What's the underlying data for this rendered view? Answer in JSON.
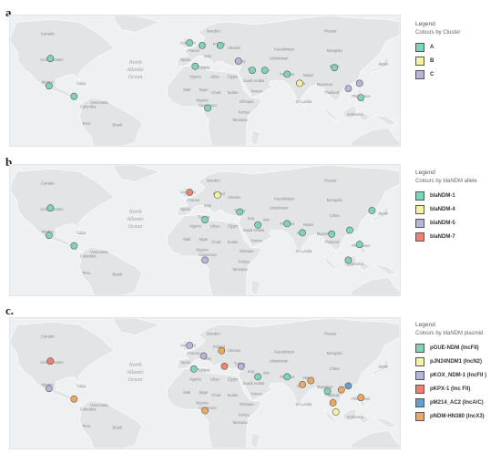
{
  "panels": [
    {
      "label": "a.",
      "legend": {
        "title": "Legend",
        "subtitle": "Colours by Cluster",
        "items": [
          {
            "label": "A",
            "color": "#7fd3b8"
          },
          {
            "label": "B",
            "color": "#f3f3a2"
          },
          {
            "label": "C",
            "color": "#b7b3db"
          }
        ]
      },
      "markers": [
        {
          "lon": -101,
          "lat": 42,
          "c": 0
        },
        {
          "lon": -102,
          "lat": 21,
          "c": 0
        },
        {
          "lon": -84,
          "lat": 13,
          "c": 0
        },
        {
          "lon": -1,
          "lat": 54,
          "c": 0
        },
        {
          "lon": 8,
          "lat": 52,
          "c": 0
        },
        {
          "lon": 21,
          "lat": 52,
          "c": 0
        },
        {
          "lon": 3,
          "lat": 36,
          "c": 0
        },
        {
          "lon": 12,
          "lat": 4,
          "c": 0
        },
        {
          "lon": 34,
          "lat": 40,
          "c": 2
        },
        {
          "lon": 44,
          "lat": 33,
          "c": 0
        },
        {
          "lon": 53,
          "lat": 33,
          "c": 0
        },
        {
          "lon": 69,
          "lat": 30,
          "c": 0
        },
        {
          "lon": 78,
          "lat": 23,
          "c": 1
        },
        {
          "lon": 103,
          "lat": 35,
          "c": 0
        },
        {
          "lon": 121,
          "lat": 23,
          "c": 2
        },
        {
          "lon": 113,
          "lat": 19,
          "c": 2
        },
        {
          "lon": 122,
          "lat": 12,
          "c": 0
        }
      ]
    },
    {
      "label": "b.",
      "legend": {
        "title": "Legend",
        "subtitle": "Colours by blaNDM allele",
        "items": [
          {
            "label": "blaNDM-1",
            "color": "#7fd3b8"
          },
          {
            "label": "blaNDM-4",
            "color": "#f3f3a2"
          },
          {
            "label": "blaNDM-5",
            "color": "#b7b3db"
          },
          {
            "label": "blaNDM-7",
            "color": "#f08070"
          }
        ]
      },
      "markers": [
        {
          "lon": -101,
          "lat": 42,
          "c": 0
        },
        {
          "lon": -102,
          "lat": 21,
          "c": 0
        },
        {
          "lon": -84,
          "lat": 13,
          "c": 0
        },
        {
          "lon": -1,
          "lat": 54,
          "c": 3
        },
        {
          "lon": 19,
          "lat": 52,
          "c": 1
        },
        {
          "lon": 10,
          "lat": 33,
          "c": 0
        },
        {
          "lon": 35,
          "lat": 39,
          "c": 0
        },
        {
          "lon": 48,
          "lat": 29,
          "c": 0
        },
        {
          "lon": 69,
          "lat": 30,
          "c": 0
        },
        {
          "lon": 80,
          "lat": 23,
          "c": 0
        },
        {
          "lon": 101,
          "lat": 22,
          "c": 0
        },
        {
          "lon": 114,
          "lat": 25,
          "c": 0
        },
        {
          "lon": 10,
          "lat": 2,
          "c": 2
        },
        {
          "lon": 121,
          "lat": 14,
          "c": 0
        },
        {
          "lon": 113,
          "lat": 2,
          "c": 0
        },
        {
          "lon": 130,
          "lat": 40,
          "c": 0
        }
      ]
    },
    {
      "label": "c.",
      "legend": {
        "title": "Legend",
        "subtitle": "Colours by blaNDM plasmid",
        "items": [
          {
            "label": "pGUE-NDM (IncFII)",
            "color": "#7fd3b8"
          },
          {
            "label": "pJN24NDM1 (IncN2)",
            "color": "#f3f3a2"
          },
          {
            "label": "pKOX_NDM-1 (IncFII )",
            "color": "#b7b3db"
          },
          {
            "label": "pKPX-1 (Inc FII)",
            "color": "#f08070"
          },
          {
            "label": "pM214_AC2 (IncA/C)",
            "color": "#6a9ec9"
          },
          {
            "label": "pNDM-HN380 (IncX3)",
            "color": "#f0a860"
          }
        ]
      },
      "markers": [
        {
          "lon": -101,
          "lat": 42,
          "c": 3
        },
        {
          "lon": -102,
          "lat": 21,
          "c": 2
        },
        {
          "lon": -84,
          "lat": 13,
          "c": 5
        },
        {
          "lon": -1,
          "lat": 54,
          "c": 2
        },
        {
          "lon": 9,
          "lat": 46,
          "c": 2
        },
        {
          "lon": 22,
          "lat": 50,
          "c": 5
        },
        {
          "lon": 2,
          "lat": 36,
          "c": 0
        },
        {
          "lon": 10,
          "lat": 4,
          "c": 5
        },
        {
          "lon": 24,
          "lat": 38,
          "c": 3
        },
        {
          "lon": 36,
          "lat": 38,
          "c": 2
        },
        {
          "lon": 48,
          "lat": 30,
          "c": 0
        },
        {
          "lon": 69,
          "lat": 30,
          "c": 0
        },
        {
          "lon": 80,
          "lat": 24,
          "c": 5
        },
        {
          "lon": 98,
          "lat": 19,
          "c": 0
        },
        {
          "lon": 108,
          "lat": 20,
          "c": 5
        },
        {
          "lon": 122,
          "lat": 14,
          "c": 5
        },
        {
          "lon": 102,
          "lat": 10,
          "c": 5
        },
        {
          "lon": 104,
          "lat": 3,
          "c": 1
        },
        {
          "lon": 86,
          "lat": 27,
          "c": 5
        },
        {
          "lon": 113,
          "lat": 23,
          "c": 4
        }
      ]
    }
  ],
  "map_labels": {
    "ocean": [
      "North",
      "Atlantic",
      "Ocean"
    ],
    "places": [
      {
        "t": "Canada",
        "lon": -103,
        "lat": 60
      },
      {
        "t": "United States",
        "lon": -100,
        "lat": 40
      },
      {
        "t": "Mexico",
        "lon": -103,
        "lat": 23
      },
      {
        "t": "Cuba",
        "lon": -79,
        "lat": 22
      },
      {
        "t": "Venezuela",
        "lon": -66,
        "lat": 7
      },
      {
        "t": "Colombia",
        "lon": -74,
        "lat": 4
      },
      {
        "t": "Brazil",
        "lon": -53,
        "lat": -10
      },
      {
        "t": "Peru",
        "lon": -75,
        "lat": -9
      },
      {
        "t": "Russia",
        "lon": 100,
        "lat": 62
      },
      {
        "t": "Sweden",
        "lon": 16,
        "lat": 62
      },
      {
        "t": "Poland",
        "lon": 20,
        "lat": 52
      },
      {
        "t": "Ukraine",
        "lon": 31,
        "lat": 49
      },
      {
        "t": "France",
        "lon": 2,
        "lat": 47
      },
      {
        "t": "Spain",
        "lon": -4,
        "lat": 40
      },
      {
        "t": "Italy",
        "lon": 12,
        "lat": 43
      },
      {
        "t": "Turkey",
        "lon": 35,
        "lat": 39
      },
      {
        "t": "Kazakhstan",
        "lon": 67,
        "lat": 48
      },
      {
        "t": "Mongolia",
        "lon": 103,
        "lat": 47
      },
      {
        "t": "China",
        "lon": 103,
        "lat": 35
      },
      {
        "t": "Uzbekistan",
        "lon": 63,
        "lat": 41
      },
      {
        "t": "Iran",
        "lon": 54,
        "lat": 32
      },
      {
        "t": "Iraq",
        "lon": 43,
        "lat": 33
      },
      {
        "t": "Pakistan",
        "lon": 69,
        "lat": 29
      },
      {
        "t": "India",
        "lon": 79,
        "lat": 22
      },
      {
        "t": "Nepal",
        "lon": 84,
        "lat": 28
      },
      {
        "t": "Algeria",
        "lon": 3,
        "lat": 27
      },
      {
        "t": "Libya",
        "lon": 17,
        "lat": 27
      },
      {
        "t": "Egypt",
        "lon": 30,
        "lat": 27
      },
      {
        "t": "Saudi Arabia",
        "lon": 45,
        "lat": 24
      },
      {
        "t": "Mali",
        "lon": -3,
        "lat": 17
      },
      {
        "t": "Niger",
        "lon": 9,
        "lat": 17
      },
      {
        "t": "Chad",
        "lon": 18,
        "lat": 15
      },
      {
        "t": "Sudan",
        "lon": 30,
        "lat": 15
      },
      {
        "t": "Ethiopia",
        "lon": 40,
        "lat": 8
      },
      {
        "t": "Nigeria",
        "lon": 8,
        "lat": 9
      },
      {
        "t": "Cameroon",
        "lon": 12,
        "lat": 5
      },
      {
        "t": "Kenya",
        "lon": 38,
        "lat": 0
      },
      {
        "t": "Tanzania",
        "lon": 35,
        "lat": -6
      },
      {
        "t": "Myanmar",
        "lon": 96,
        "lat": 21
      },
      {
        "t": "Thailand",
        "lon": 101,
        "lat": 15
      },
      {
        "t": "Indonesia",
        "lon": 118,
        "lat": -2
      },
      {
        "t": "Philippines",
        "lon": 122,
        "lat": 12
      },
      {
        "t": "Japan",
        "lon": 138,
        "lat": 37
      },
      {
        "t": "Sri Lanka",
        "lon": 81,
        "lat": 8
      },
      {
        "t": "Tunisia",
        "lon": 9,
        "lat": 34
      },
      {
        "t": "Yemen",
        "lon": 47,
        "lat": 16
      },
      {
        "t": "Kingdom",
        "lon": -2,
        "lat": 53
      }
    ]
  }
}
